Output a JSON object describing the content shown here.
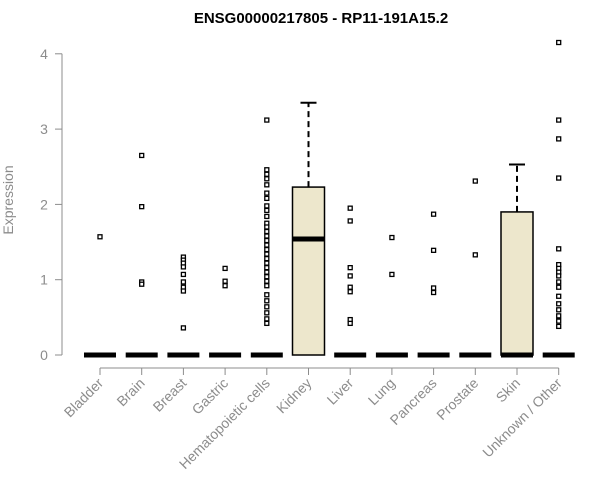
{
  "chart_data": {
    "type": "box",
    "title": "ENSG00000217805 - RP11-191A15.2",
    "xlabel": "",
    "ylabel": "Expression",
    "ylim": [
      0,
      4.2
    ],
    "yticks": [
      0,
      1,
      2,
      3,
      4
    ],
    "grid": false,
    "colors": {
      "box_fill": "#ede7cc",
      "box_stroke": "#000000",
      "axis": "#8c8c8c",
      "text": "#8c8c8c"
    },
    "categories": [
      "Bladder",
      "Brain",
      "Breast",
      "Gastric",
      "Hematopoietic cells",
      "Kidney",
      "Liver",
      "Lung",
      "Pancreas",
      "Prostate",
      "Skin",
      "Unknown / Other"
    ],
    "boxes": [
      {
        "category": "Bladder",
        "q1": 0,
        "median": 0,
        "q3": 0,
        "whisker_low": 0,
        "whisker_high": 0,
        "outliers": [
          1.57
        ]
      },
      {
        "category": "Brain",
        "q1": 0,
        "median": 0,
        "q3": 0,
        "whisker_low": 0,
        "whisker_high": 0,
        "outliers": [
          2.65,
          1.97,
          0.97,
          0.94
        ]
      },
      {
        "category": "Breast",
        "q1": 0,
        "median": 0,
        "q3": 0,
        "whisker_low": 0,
        "whisker_high": 0,
        "outliers": [
          1.3,
          1.26,
          1.22,
          1.17,
          1.07,
          0.97,
          0.9,
          0.85,
          0.36
        ]
      },
      {
        "category": "Gastric",
        "q1": 0,
        "median": 0,
        "q3": 0,
        "whisker_low": 0,
        "whisker_high": 0,
        "outliers": [
          1.15,
          0.98,
          0.92
        ]
      },
      {
        "category": "Hematopoietic cells",
        "q1": 0,
        "median": 0,
        "q3": 0,
        "whisker_low": 0,
        "whisker_high": 0,
        "outliers": [
          3.12,
          2.46,
          2.4,
          2.34,
          2.26,
          2.15,
          2.08,
          1.98,
          1.92,
          1.84,
          1.75,
          1.7,
          1.64,
          1.58,
          1.52,
          1.46,
          1.4,
          1.34,
          1.28,
          1.22,
          1.16,
          1.1,
          1.04,
          0.98,
          0.92,
          0.8,
          0.72,
          0.64,
          0.56,
          0.48,
          0.42
        ]
      },
      {
        "category": "Kidney",
        "q1": 0,
        "median": 1.54,
        "q3": 2.23,
        "whisker_low": 0,
        "whisker_high": 3.35,
        "outliers": []
      },
      {
        "category": "Liver",
        "q1": 0,
        "median": 0,
        "q3": 0,
        "whisker_low": 0,
        "whisker_high": 0,
        "outliers": [
          1.95,
          1.78,
          1.16,
          1.05,
          0.9,
          0.84,
          0.47,
          0.42
        ]
      },
      {
        "category": "Lung",
        "q1": 0,
        "median": 0,
        "q3": 0,
        "whisker_low": 0,
        "whisker_high": 0,
        "outliers": [
          1.56,
          1.07
        ]
      },
      {
        "category": "Pancreas",
        "q1": 0,
        "median": 0,
        "q3": 0,
        "whisker_low": 0,
        "whisker_high": 0,
        "outliers": [
          1.87,
          1.39,
          0.89,
          0.83
        ]
      },
      {
        "category": "Prostate",
        "q1": 0,
        "median": 0,
        "q3": 0,
        "whisker_low": 0,
        "whisker_high": 0,
        "outliers": [
          2.31,
          1.33
        ]
      },
      {
        "category": "Skin",
        "q1": 0,
        "median": 0,
        "q3": 1.9,
        "whisker_low": 0,
        "whisker_high": 2.53,
        "outliers": []
      },
      {
        "category": "Unknown / Other",
        "q1": 0,
        "median": 0,
        "q3": 0,
        "whisker_low": 0,
        "whisker_high": 0,
        "outliers": [
          4.15,
          3.12,
          2.87,
          2.35,
          1.41,
          1.2,
          1.15,
          1.1,
          1.05,
          0.97,
          0.9,
          0.78,
          0.68,
          0.6,
          0.52,
          0.45,
          0.38
        ]
      }
    ]
  }
}
